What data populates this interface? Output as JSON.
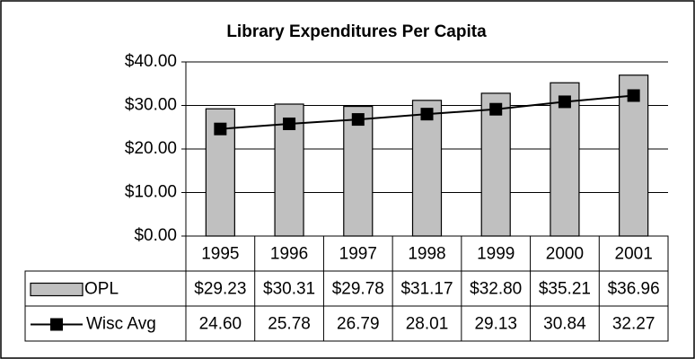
{
  "chart_data": {
    "type": "bar-line",
    "title": "Library Expenditures Per Capita",
    "categories": [
      "1995",
      "1996",
      "1997",
      "1998",
      "1999",
      "2000",
      "2001"
    ],
    "series": [
      {
        "name": "OPL",
        "type": "bar",
        "color": "#c0c0c0",
        "values": [
          29.23,
          30.31,
          29.78,
          31.17,
          32.8,
          35.21,
          36.96
        ],
        "value_labels": [
          "$29.23",
          "$30.31",
          "$29.78",
          "$31.17",
          "$32.80",
          "$35.21",
          "$36.96"
        ]
      },
      {
        "name": "Wisc Avg",
        "type": "line",
        "color": "#000000",
        "values": [
          24.6,
          25.78,
          26.79,
          28.01,
          29.13,
          30.84,
          32.27
        ],
        "value_labels": [
          "24.60",
          "25.78",
          "26.79",
          "28.01",
          "29.13",
          "30.84",
          "32.27"
        ]
      }
    ],
    "ylim": [
      0,
      40
    ],
    "yticks": [
      {
        "value": 0,
        "label": "$0.00"
      },
      {
        "value": 10,
        "label": "$10.00"
      },
      {
        "value": 20,
        "label": "$20.00"
      },
      {
        "value": 30,
        "label": "$30.00"
      },
      {
        "value": 40,
        "label": "$40.00"
      }
    ],
    "grid": true
  }
}
